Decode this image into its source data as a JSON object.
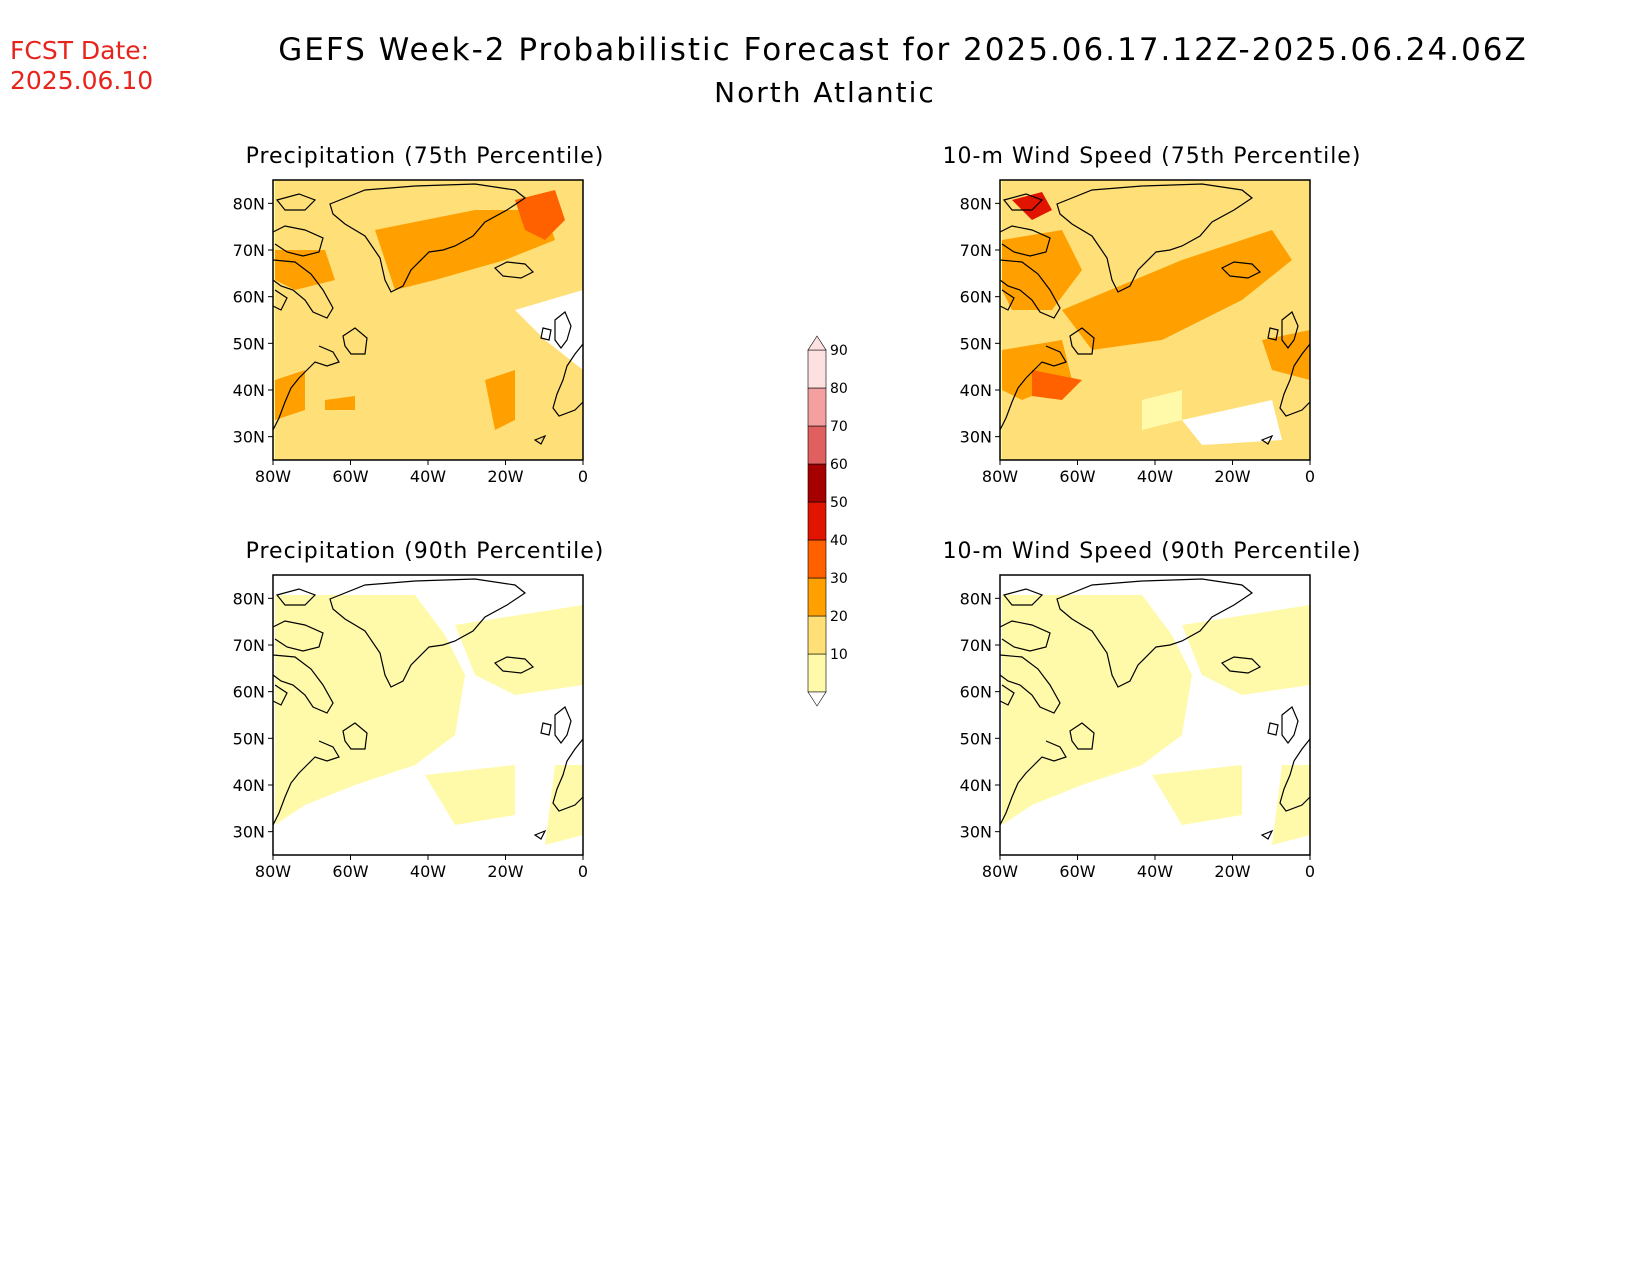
{
  "header": {
    "fcst_label": "FCST Date:",
    "fcst_date": "2025.06.10",
    "title": "GEFS Week-2 Probabilistic Forecast for 2025.06.17.12Z-2025.06.24.06Z",
    "region": "North Atlantic"
  },
  "panels": [
    {
      "title": "Precipitation (75th Percentile)",
      "level": 1
    },
    {
      "title": "10-m Wind Speed (75th Percentile)",
      "level": 2
    },
    {
      "title": "Precipitation (90th Percentile)",
      "level": 0
    },
    {
      "title": "10-m Wind Speed (90th Percentile)",
      "level": 0
    }
  ],
  "axes": {
    "lat_ticks": [
      "80N",
      "70N",
      "60N",
      "50N",
      "40N",
      "30N"
    ],
    "lon_ticks": [
      "80W",
      "60W",
      "40W",
      "20W",
      "0"
    ]
  },
  "colorbar": {
    "levels": [
      "10",
      "20",
      "30",
      "40",
      "50",
      "60",
      "70",
      "80",
      "90"
    ],
    "colors": [
      "#fffaaa",
      "#ffe078",
      "#ffa000",
      "#ff6000",
      "#e11400",
      "#a50000",
      "#e06060",
      "#f5a0a0",
      "#fde0e0"
    ]
  }
}
